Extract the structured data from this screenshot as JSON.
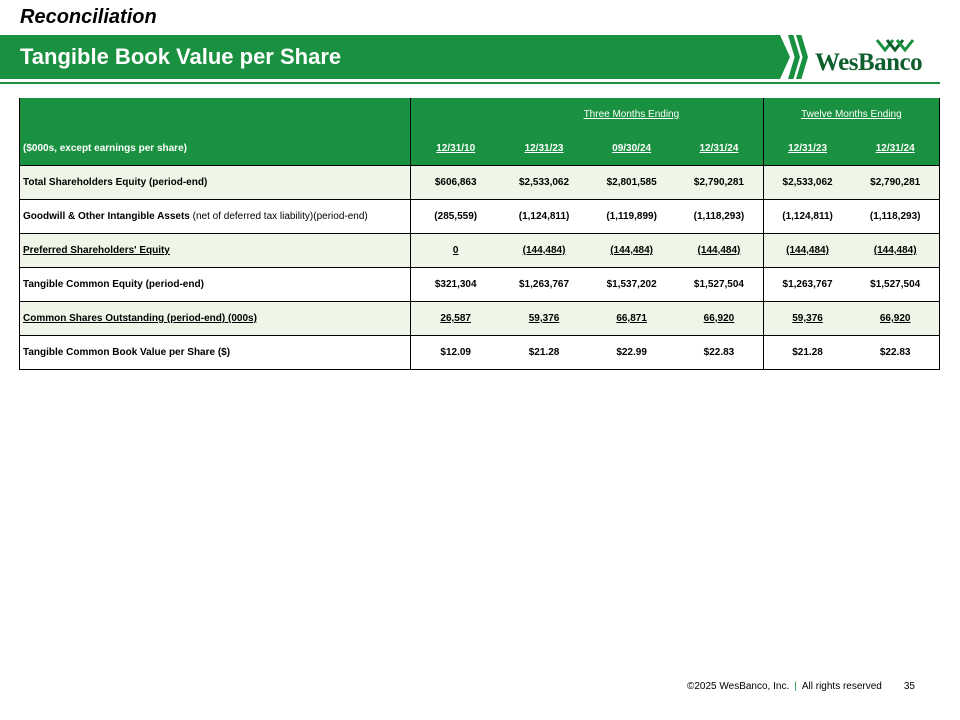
{
  "header": {
    "subtitle": "Reconciliation",
    "title": "Tangible Book Value per Share",
    "logo_text": "WesBanco"
  },
  "table": {
    "group_three_months": "Three Months Ending",
    "group_twelve_months": "Twelve Months Ending",
    "unit_label": "($000s, except earnings per share)",
    "columns": [
      "12/31/10",
      "12/31/23",
      "09/30/24",
      "12/31/24",
      "12/31/23",
      "12/31/24"
    ],
    "rows": [
      {
        "label": "Total Shareholders Equity (period-end)",
        "note": "",
        "values": [
          "$606,863",
          "$2,533,062",
          "$2,801,585",
          "$2,790,281",
          "$2,533,062",
          "$2,790,281"
        ]
      },
      {
        "label": "Goodwill & Other Intangible Assets",
        "note": "(net of deferred tax liability)(period-end)",
        "values": [
          "(285,559)",
          "(1,124,811)",
          "(1,119,899)",
          "(1,118,293)",
          "(1,124,811)",
          "(1,118,293)"
        ]
      },
      {
        "label": "Preferred Shareholders' Equity",
        "note": "",
        "values": [
          "0",
          "(144,484)",
          "(144,484)",
          "(144,484)",
          "(144,484)",
          "(144,484)"
        ]
      },
      {
        "label": "Tangible Common Equity (period-end)",
        "note": "",
        "values": [
          "$321,304",
          "$1,263,767",
          "$1,537,202",
          "$1,527,504",
          "$1,263,767",
          "$1,527,504"
        ]
      },
      {
        "label": "Common Shares Outstanding (period-end) (000s)",
        "note": "",
        "values": [
          "26,587",
          "59,376",
          "66,871",
          "66,920",
          "59,376",
          "66,920"
        ]
      },
      {
        "label": "Tangible Common Book Value per Share ($)",
        "note": "",
        "values": [
          "$12.09",
          "$21.28",
          "$22.99",
          "$22.83",
          "$21.28",
          "$22.83"
        ]
      }
    ]
  },
  "footer": {
    "copyright": "©2025 WesBanco, Inc.",
    "separator": "|",
    "rights": "All rights reserved",
    "page_number": "35"
  },
  "colors": {
    "brand_green": "#1a9140",
    "logo_green": "#0f5e2e",
    "row_shade": "#eff6e8"
  }
}
